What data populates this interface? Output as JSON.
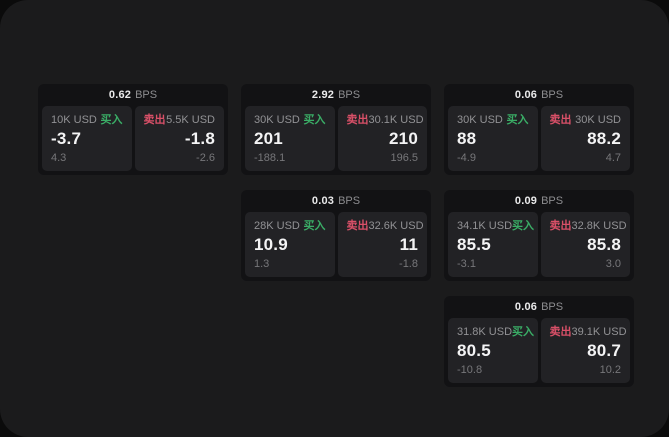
{
  "labels": {
    "bps": "BPS",
    "buy": "买入",
    "sell": "卖出"
  },
  "colors": {
    "page_bg": "#0b0b0b",
    "window_bg": "#1b1b1c",
    "card_bg": "#121214",
    "panel_bg": "#222225",
    "buy_green": "#3aad66",
    "sell_red": "#d95068"
  },
  "cards": [
    {
      "bps": "0.62",
      "grid": {
        "col": 1,
        "row": 1
      },
      "buy": {
        "amount": "10K USD",
        "price": "-3.7",
        "delta": "4.3"
      },
      "sell": {
        "amount": "5.5K USD",
        "price": "-1.8",
        "delta": "-2.6"
      }
    },
    {
      "bps": "2.92",
      "grid": {
        "col": 2,
        "row": 1
      },
      "buy": {
        "amount": "30K USD",
        "price": "201",
        "delta": "-188.1"
      },
      "sell": {
        "amount": "30.1K USD",
        "price": "210",
        "delta": "196.5"
      }
    },
    {
      "bps": "0.06",
      "grid": {
        "col": 3,
        "row": 1
      },
      "buy": {
        "amount": "30K USD",
        "price": "88",
        "delta": "-4.9"
      },
      "sell": {
        "amount": "30K USD",
        "price": "88.2",
        "delta": "4.7"
      }
    },
    {
      "bps": "0.03",
      "grid": {
        "col": 2,
        "row": 2
      },
      "buy": {
        "amount": "28K USD",
        "price": "10.9",
        "delta": "1.3"
      },
      "sell": {
        "amount": "32.6K USD",
        "price": "11",
        "delta": "-1.8"
      }
    },
    {
      "bps": "0.09",
      "grid": {
        "col": 3,
        "row": 2
      },
      "buy": {
        "amount": "34.1K USD",
        "price": "85.5",
        "delta": "-3.1"
      },
      "sell": {
        "amount": "32.8K USD",
        "price": "85.8",
        "delta": "3.0"
      }
    },
    {
      "bps": "0.06",
      "grid": {
        "col": 3,
        "row": 3
      },
      "buy": {
        "amount": "31.8K USD",
        "price": "80.5",
        "delta": "-10.8"
      },
      "sell": {
        "amount": "39.1K USD",
        "price": "80.7",
        "delta": "10.2"
      }
    }
  ]
}
